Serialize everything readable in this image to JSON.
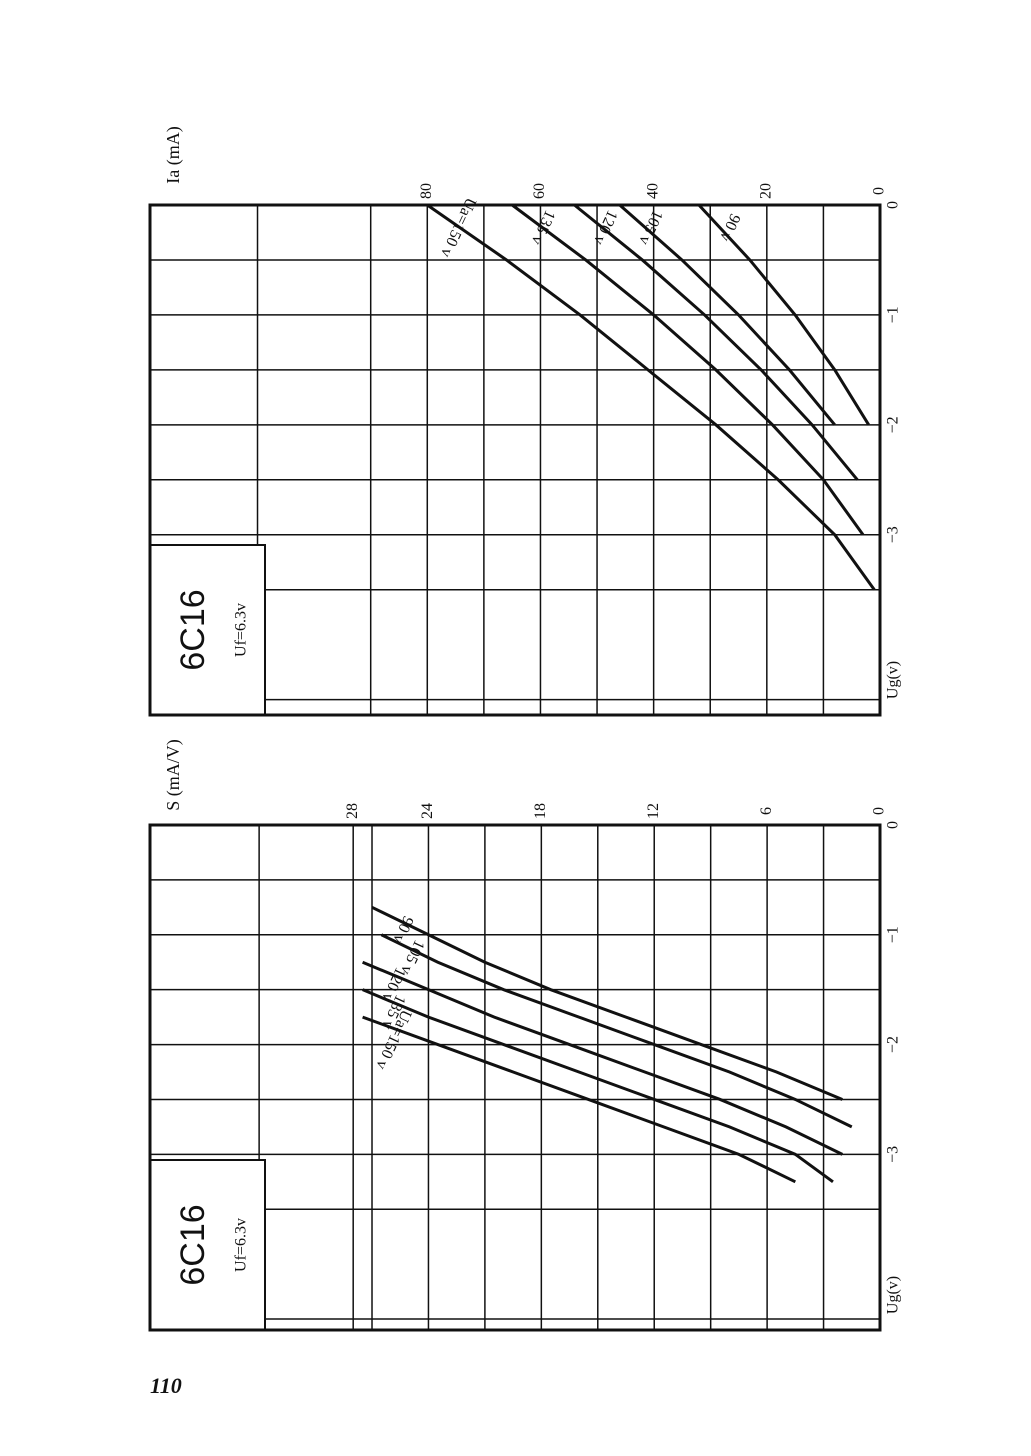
{
  "page_number": "110",
  "chart_data": [
    {
      "type": "line",
      "title": "6C16",
      "subtitle": "Uf=6.3v",
      "x_label": "Ug(v)",
      "y_label": "Ia (mA)",
      "x": [
        0,
        -0.5,
        -1,
        -1.5,
        -2,
        -2.5,
        -3,
        -3.5
      ],
      "xlim": [
        0,
        -4.64
      ],
      "xticks": [
        0,
        {
          "value": -1,
          "label": "−1"
        },
        {
          "value": -2,
          "label": "−2"
        },
        {
          "value": -3,
          "label": "−3"
        }
      ],
      "ylim": [
        0,
        129
      ],
      "yticks": [
        0,
        20,
        40,
        60,
        80
      ],
      "grid": true,
      "series": [
        {
          "name": "Ua=150 v",
          "color": "#111111",
          "values": [
            80,
            66,
            53,
            41,
            29,
            18,
            8,
            1
          ]
        },
        {
          "name": "135 v",
          "color": "#111111",
          "values": [
            65,
            52,
            40,
            29,
            19,
            10,
            3,
            null
          ]
        },
        {
          "name": "120 v",
          "color": "#111111",
          "values": [
            54,
            42,
            31,
            21,
            12,
            4,
            null,
            null
          ]
        },
        {
          "name": "105 v",
          "color": "#111111",
          "values": [
            46,
            35,
            25,
            16,
            8,
            null,
            null,
            null
          ]
        },
        {
          "name": "90 v",
          "color": "#111111",
          "values": [
            32,
            23,
            15,
            8,
            2,
            null,
            null,
            null
          ]
        }
      ]
    },
    {
      "type": "line",
      "title": "6C16",
      "subtitle": "Uf=6.3v",
      "x_label": "Ug(v)",
      "y_label": "S (mA/V)",
      "x": [
        -0.75,
        -1,
        -1.25,
        -1.5,
        -1.75,
        -2,
        -2.25,
        -2.5,
        -2.75,
        -3,
        -3.25
      ],
      "xlim": [
        0,
        -4.6
      ],
      "xticks": [
        0,
        {
          "value": -1,
          "label": "−1"
        },
        {
          "value": -2,
          "label": "−2"
        },
        {
          "value": -3,
          "label": "−3"
        }
      ],
      "ylim": [
        0,
        38.8
      ],
      "yticks": [
        0,
        6,
        12,
        18,
        24,
        28
      ],
      "grid": true,
      "series": [
        {
          "name": "Ua=150 v",
          "color": "#111111",
          "values": [
            null,
            null,
            null,
            null,
            27.5,
            23.5,
            19.5,
            15.5,
            11.5,
            7.5,
            4.5
          ]
        },
        {
          "name": "135 v",
          "color": "#111111",
          "values": [
            null,
            null,
            null,
            27.5,
            24,
            20,
            16,
            12,
            8,
            4.5,
            2.5
          ]
        },
        {
          "name": "120 v",
          "color": "#111111",
          "values": [
            null,
            null,
            27.5,
            24,
            20.5,
            16.5,
            12.5,
            8.5,
            5,
            2,
            null
          ]
        },
        {
          "name": "105 v",
          "color": "#111111",
          "values": [
            null,
            26.5,
            23.5,
            20,
            16,
            12,
            8,
            4.5,
            1.5,
            null,
            null
          ]
        },
        {
          "name": "90 v",
          "color": "#111111",
          "values": [
            27,
            24,
            21,
            17.5,
            13.5,
            9.5,
            5.5,
            2,
            null,
            null,
            null
          ]
        }
      ]
    }
  ]
}
